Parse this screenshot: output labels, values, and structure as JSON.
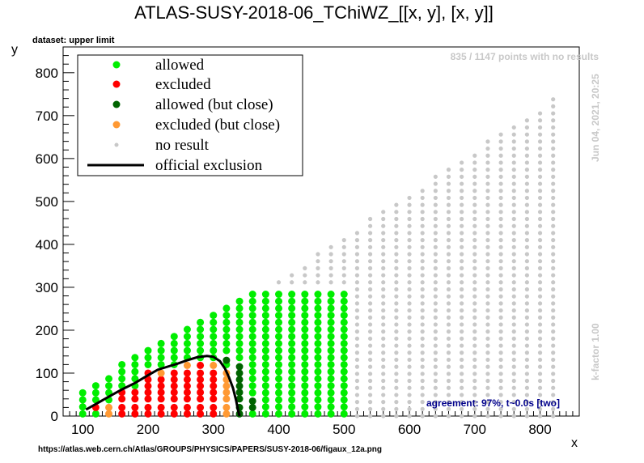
{
  "chart_data": {
    "type": "scatter",
    "title": "ATLAS-SUSY-2018-06_TChiWZ_[[x, y], [x, y]]",
    "dataset_label": "dataset: upper limit",
    "xlabel": "x",
    "ylabel": "y",
    "xlim": [
      70,
      860
    ],
    "ylim": [
      0,
      860
    ],
    "xticks": [
      100,
      200,
      300,
      400,
      500,
      600,
      700,
      800
    ],
    "yticks": [
      0,
      100,
      200,
      300,
      400,
      500,
      600,
      700,
      800
    ],
    "grid": false,
    "legend_position": "top-left",
    "legend": [
      {
        "label": "allowed",
        "color": "#00ee00",
        "kind": "marker"
      },
      {
        "label": "excluded",
        "color": "#ff0000",
        "kind": "marker"
      },
      {
        "label": "allowed (but close)",
        "color": "#006400",
        "kind": "marker"
      },
      {
        "label": "excluded (but close)",
        "color": "#ff9933",
        "kind": "marker"
      },
      {
        "label": "no result",
        "color": "#c8c8c8",
        "kind": "small-marker"
      },
      {
        "label": "official exclusion",
        "color": "#000000",
        "kind": "line"
      }
    ],
    "points_no_result_text": "835 / 1147 points with no results",
    "timestamp_text": "Jun 04, 2021, 20:25",
    "kfactor_text": "k-factor 1.00",
    "agreement_text": "agreement: 97%, t~0.0s [two]",
    "source_url": "https://atlas.web.cern.ch/Atlas/GROUPS/PHYSICS/PAPERS/SUSY-2018-06/figaux_12a.png",
    "colors": {
      "allowed": "#00ee00",
      "excluded": "#ff0000",
      "allowed_close": "#006400",
      "excluded_close": "#ff9933",
      "no_result": "#c8c8c8",
      "official": "#000000"
    },
    "grid_points": {
      "x_start": 100,
      "x_step": 20,
      "x_end": 820,
      "y_start": 0,
      "y_step": 16.4,
      "y_max_formula": "y <= x - 80 (approx. diagonal boundary)"
    },
    "result_region": {
      "x_max": 500,
      "y_max": 295
    },
    "columns": [
      {
        "x": 100,
        "excluded": [],
        "allowed_close": [],
        "excluded_close": [],
        "allowed_top": 55
      },
      {
        "x": 120,
        "excluded": [
          20
        ],
        "allowed_close": [],
        "excluded_close": [],
        "allowed_top": 80
      },
      {
        "x": 140,
        "excluded": [],
        "allowed_close": [],
        "excluded_close": [
          5,
          20
        ],
        "allowed_top": 100
      },
      {
        "x": 160,
        "excluded": [
          5,
          20,
          40,
          55
        ],
        "allowed_close": [],
        "excluded_close": [],
        "allowed_top": 120
      },
      {
        "x": 180,
        "excluded": [
          5,
          20,
          40,
          55
        ],
        "allowed_close": [],
        "excluded_close": [],
        "allowed_top": 145
      },
      {
        "x": 200,
        "excluded": [
          5,
          20,
          40,
          55,
          70,
          85,
          100
        ],
        "allowed_close": [],
        "excluded_close": [],
        "allowed_top": 160
      },
      {
        "x": 220,
        "excluded": [
          5,
          20,
          40,
          55,
          70,
          85
        ],
        "allowed_close": [],
        "excluded_close": [
          100
        ],
        "allowed_top": 175
      },
      {
        "x": 240,
        "excluded": [
          5,
          20,
          40,
          55,
          70,
          85,
          100
        ],
        "allowed_close": [],
        "excluded_close": [],
        "allowed_top": 190
      },
      {
        "x": 260,
        "excluded": [
          5,
          20,
          40,
          55,
          70,
          85,
          100
        ],
        "allowed_close": [],
        "excluded_close": [
          118
        ],
        "allowed_top": 205
      },
      {
        "x": 280,
        "excluded": [
          5,
          20,
          40,
          55,
          70,
          85,
          100,
          118
        ],
        "allowed_close": [],
        "excluded_close": [],
        "allowed_top": 220
      },
      {
        "x": 300,
        "excluded": [
          5,
          20,
          40,
          55,
          70,
          85,
          100
        ],
        "allowed_close": [],
        "excluded_close": [
          118
        ],
        "allowed_top": 250
      },
      {
        "x": 320,
        "excluded": [],
        "allowed_close": [
          130
        ],
        "excluded_close": [
          5,
          20,
          40,
          55,
          70,
          85,
          100
        ],
        "allowed_top": 265
      },
      {
        "x": 340,
        "excluded": [],
        "allowed_close": [
          5,
          20,
          40,
          55,
          70,
          85,
          100,
          115
        ],
        "excluded_close": [],
        "allowed_top": 280
      },
      {
        "x": 360,
        "excluded": [],
        "allowed_close": [
          20,
          35
        ],
        "excluded_close": [],
        "allowed_top": 295
      },
      {
        "x": 380,
        "excluded": [],
        "allowed_close": [],
        "excluded_close": [],
        "allowed_top": 295
      },
      {
        "x": 400,
        "excluded": [],
        "allowed_close": [],
        "excluded_close": [],
        "allowed_top": 295
      },
      {
        "x": 420,
        "excluded": [],
        "allowed_close": [],
        "excluded_close": [],
        "allowed_top": 295
      },
      {
        "x": 440,
        "excluded": [],
        "allowed_close": [],
        "excluded_close": [],
        "allowed_top": 295
      },
      {
        "x": 460,
        "excluded": [],
        "allowed_close": [],
        "excluded_close": [],
        "allowed_top": 295
      },
      {
        "x": 480,
        "excluded": [],
        "allowed_close": [],
        "excluded_close": [],
        "allowed_top": 295
      },
      {
        "x": 500,
        "excluded": [],
        "allowed_close": [],
        "excluded_close": [],
        "allowed_top": 295
      }
    ],
    "official_exclusion": {
      "x": [
        105,
        120,
        140,
        160,
        180,
        200,
        215,
        230,
        245,
        260,
        275,
        290,
        300,
        310,
        318,
        324,
        330,
        335,
        338,
        340
      ],
      "y": [
        15,
        28,
        45,
        62,
        77,
        95,
        108,
        115,
        122,
        130,
        137,
        140,
        138,
        128,
        110,
        90,
        65,
        35,
        12,
        0
      ]
    }
  }
}
